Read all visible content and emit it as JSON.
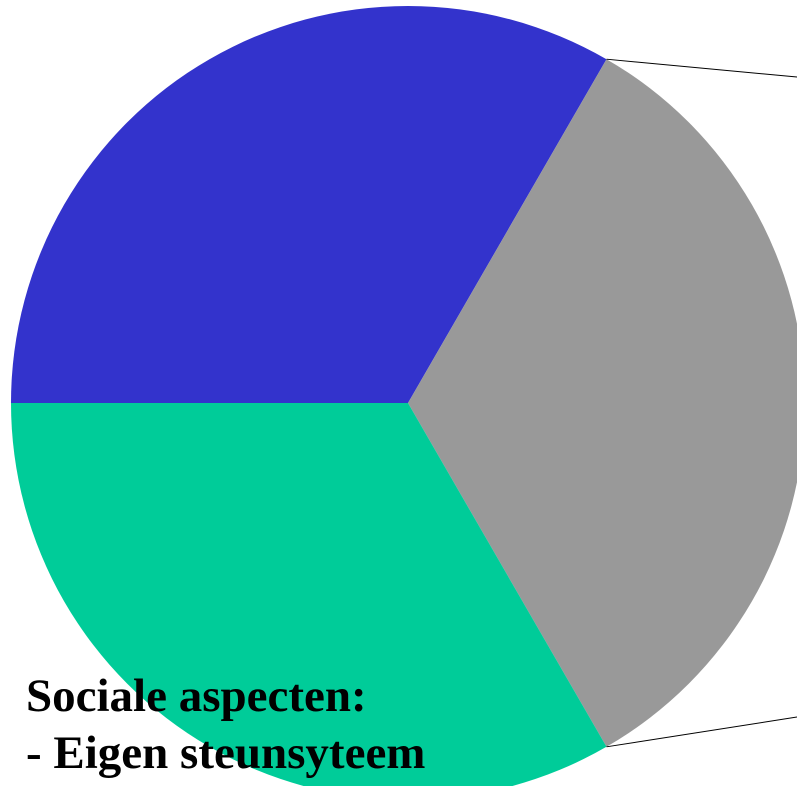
{
  "chart_data": {
    "type": "pie",
    "slices": [
      {
        "value": 33.33,
        "color": "#3333CC"
      },
      {
        "value": 33.33,
        "color": "#999999"
      },
      {
        "value": 33.33,
        "color": "#00CC99"
      }
    ]
  },
  "caption": {
    "line1": "Sociale aspecten:",
    "line2": "- Eigen steunsyteem"
  },
  "colors": {
    "background": "#FFFFFF",
    "leader_line": "#000000"
  }
}
